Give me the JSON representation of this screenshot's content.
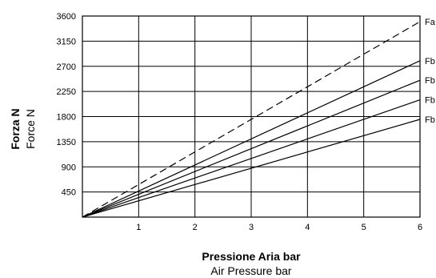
{
  "chart_data": {
    "type": "line",
    "xlabel": "Pressione Aria bar",
    "xlabel_secondary": "Air Pressure bar",
    "ylabel": "Forza N",
    "ylabel_secondary": "Force N",
    "xlim": [
      0,
      6
    ],
    "ylim": [
      0,
      3600
    ],
    "x_ticks": [
      1,
      2,
      3,
      4,
      5,
      6
    ],
    "y_ticks": [
      450,
      900,
      1350,
      1800,
      2250,
      2700,
      3150,
      3600
    ],
    "grid": true,
    "series": [
      {
        "name": "Fa",
        "style": "dashed",
        "x": [
          0,
          6
        ],
        "y": [
          0,
          3500
        ]
      },
      {
        "name": "Fb",
        "style": "solid",
        "x": [
          0,
          6
        ],
        "y": [
          0,
          2800
        ]
      },
      {
        "name": "Fb",
        "style": "solid",
        "x": [
          0,
          6
        ],
        "y": [
          0,
          2450
        ]
      },
      {
        "name": "Fb",
        "style": "solid",
        "x": [
          0,
          6
        ],
        "y": [
          0,
          2100
        ]
      },
      {
        "name": "Fb",
        "style": "solid",
        "x": [
          0,
          6
        ],
        "y": [
          0,
          1750
        ]
      }
    ]
  }
}
